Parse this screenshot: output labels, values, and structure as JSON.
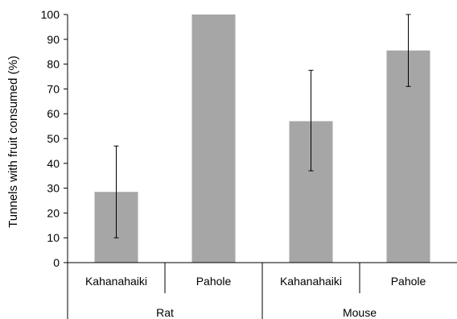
{
  "chart_data": {
    "type": "bar",
    "ylabel": "Tunnels with fruit consumed  (%)",
    "ylim": [
      0,
      100
    ],
    "yticks": [
      0,
      10,
      20,
      30,
      40,
      50,
      60,
      70,
      80,
      90,
      100
    ],
    "groups": [
      {
        "label": "Rat",
        "categories": [
          "Kahanahaiki",
          "Pahole"
        ]
      },
      {
        "label": "Mouse",
        "categories": [
          "Kahanahaiki",
          "Pahole"
        ]
      }
    ],
    "categories": [
      "Kahanahaiki",
      "Pahole",
      "Kahanahaiki",
      "Pahole"
    ],
    "values": [
      28.5,
      100,
      57,
      85.5
    ],
    "error_low": [
      10,
      100,
      37,
      71
    ],
    "error_high": [
      47,
      100,
      77.5,
      100
    ],
    "grid": false,
    "bar_color": "#a6a6a6"
  }
}
